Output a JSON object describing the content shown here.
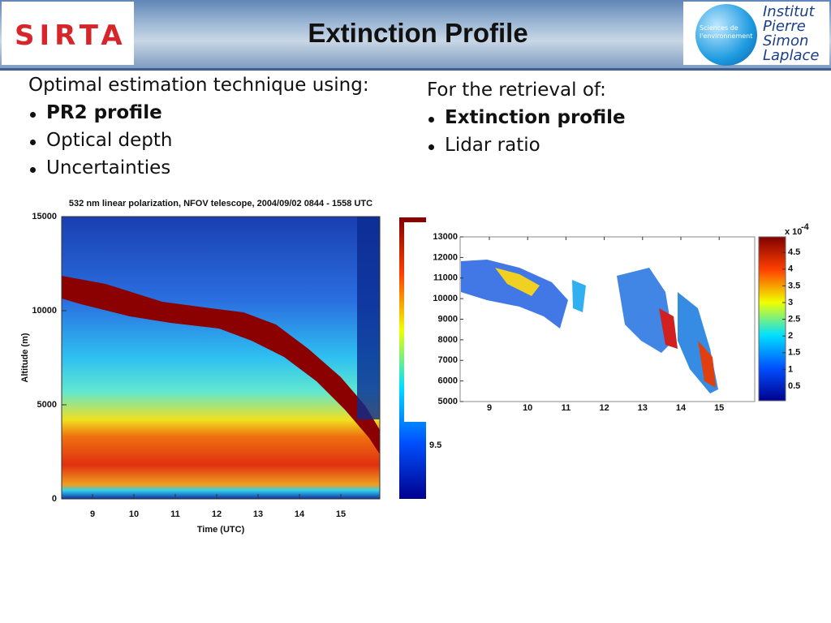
{
  "header": {
    "title": "Extinction Profile",
    "left_logo": "SIRTA",
    "right_logo": {
      "lines_small": [
        "Sciences de",
        "l'environnement"
      ],
      "lines_large": [
        "Institut",
        "Pierre",
        "Simon",
        "Laplace"
      ]
    }
  },
  "left_block": {
    "heading": "Optimal estimation technique using:",
    "bullets": [
      {
        "text": "PR2 profile",
        "bold": true
      },
      {
        "text": "Optical depth",
        "bold": false
      },
      {
        "text": "Uncertainties",
        "bold": false
      }
    ]
  },
  "right_block": {
    "heading": "For the retrieval of:",
    "bullets": [
      {
        "text": "Extinction profile",
        "bold": true
      },
      {
        "text": "Lidar ratio",
        "bold": false
      }
    ]
  },
  "plot_left": {
    "title": "532 nm linear polarization, NFOV telescope,    2004/09/02  0844 - 1558 UTC",
    "ylabel": "Altitude (m)",
    "xlabel": "Time (UTC)",
    "yticks": [
      0,
      5000,
      10000,
      15000
    ],
    "xticks": [
      9,
      10,
      11,
      12,
      13,
      14,
      15
    ],
    "colorbar_label": "9.5"
  },
  "plot_right": {
    "yticks": [
      5000,
      6000,
      7000,
      8000,
      9000,
      10000,
      11000,
      12000,
      13000
    ],
    "xticks": [
      9,
      10,
      11,
      12,
      13,
      14,
      15
    ],
    "colorbar_ticks": [
      0.5,
      1,
      1.5,
      2,
      2.5,
      3,
      3.5,
      4,
      4.5
    ],
    "colorbar_scale": "x 10",
    "colorbar_exponent": "-4"
  }
}
